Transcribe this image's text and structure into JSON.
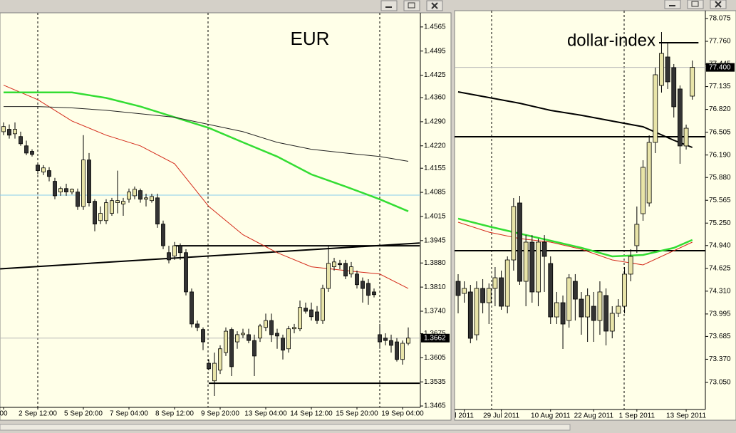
{
  "chart_data": [
    {
      "type": "candlestick",
      "title": "EUR",
      "categories": [
        "00",
        null,
        null,
        null,
        null,
        null,
        "2 Sep 12:00",
        null,
        null,
        null,
        null,
        null,
        null,
        null,
        "5 Sep 20:00",
        null,
        null,
        null,
        null,
        null,
        null,
        null,
        "7 Sep 04:00",
        null,
        null,
        null,
        null,
        null,
        null,
        null,
        "8 Sep 12:00",
        null,
        null,
        null,
        null,
        null,
        null,
        null,
        "9 Sep 20:00",
        null,
        null,
        null,
        null,
        null,
        null,
        null,
        "13 Sep 04:00",
        null,
        null,
        null,
        null,
        null,
        null,
        null,
        "14 Sep 12:00",
        null,
        null,
        null,
        null,
        null,
        null,
        null,
        "15 Sep 20:00",
        null,
        null,
        null,
        null,
        null,
        null,
        null,
        "19 Sep 04:00",
        null
      ],
      "ohlc": [
        [
          1.4261,
          1.4288,
          1.4251,
          1.4276
        ],
        [
          1.4268,
          1.4282,
          1.4241,
          1.4251
        ],
        [
          1.4255,
          1.4288,
          1.4241,
          1.4268
        ],
        [
          1.4247,
          1.4261,
          1.422,
          1.4226
        ],
        [
          1.422,
          1.4235,
          1.4193,
          1.4199
        ],
        [
          1.4204,
          1.421,
          1.4189,
          1.4195
        ],
        [
          1.4164,
          1.4172,
          1.4137,
          1.4148
        ],
        [
          1.4144,
          1.4164,
          1.4135,
          1.4156
        ],
        [
          1.4148,
          1.4158,
          1.4117,
          1.4131
        ],
        [
          1.4117,
          1.4127,
          1.4065,
          1.4075
        ],
        [
          1.4086,
          1.4102,
          1.4075,
          1.4096
        ],
        [
          1.4096,
          1.411,
          1.4075,
          1.4086
        ],
        [
          1.4086,
          1.4096,
          1.4079,
          1.4094
        ],
        [
          1.4086,
          1.4096,
          1.4034,
          1.4044
        ],
        [
          1.4044,
          1.4251,
          1.4034,
          1.4179
        ],
        [
          1.4179,
          1.4199,
          1.4044,
          1.4055
        ],
        [
          1.4059,
          1.4065,
          1.3972,
          1.3993
        ],
        [
          1.4003,
          1.4044,
          1.3993,
          1.4024
        ],
        [
          1.4003,
          1.4065,
          1.3993,
          1.4055
        ],
        [
          1.4024,
          1.4069,
          1.4017,
          1.4061
        ],
        [
          1.4055,
          1.4148,
          1.4024,
          1.4061
        ],
        [
          1.4051,
          1.4069,
          1.4017,
          1.4059
        ],
        [
          1.4065,
          1.4096,
          1.4055,
          1.4086
        ],
        [
          1.4075,
          1.4102,
          1.4065,
          1.4094
        ],
        [
          1.409,
          1.4096,
          1.4055,
          1.4065
        ],
        [
          1.4065,
          1.4081,
          1.4044,
          1.4069
        ],
        [
          1.4061,
          1.4081,
          1.4055,
          1.4073
        ],
        [
          1.4069,
          1.4081,
          1.3982,
          1.3993
        ],
        [
          1.3993,
          1.4003,
          1.392,
          1.393
        ],
        [
          1.391,
          1.393,
          1.3879,
          1.3889
        ],
        [
          1.39,
          1.3941,
          1.3889,
          1.393
        ],
        [
          1.393,
          1.3937,
          1.3889,
          1.391
        ],
        [
          1.391,
          1.392,
          1.3786,
          1.3796
        ],
        [
          1.3796,
          1.3806,
          1.3693,
          1.3703
        ],
        [
          1.3703,
          1.3713,
          1.3682,
          1.3693
        ],
        [
          1.3687,
          1.3693,
          1.3627,
          1.3651
        ],
        [
          1.3589,
          1.36,
          1.3569,
          1.3573
        ],
        [
          1.3538,
          1.362,
          1.3494,
          1.3589
        ],
        [
          1.3569,
          1.3641,
          1.3558,
          1.3631
        ],
        [
          1.362,
          1.3693,
          1.361,
          1.3682
        ],
        [
          1.3687,
          1.3693,
          1.3552,
          1.3579
        ],
        [
          1.3651,
          1.3682,
          1.3631,
          1.3672
        ],
        [
          1.3672,
          1.3689,
          1.3662,
          1.3676
        ],
        [
          1.3672,
          1.3689,
          1.3647,
          1.3655
        ],
        [
          1.3655,
          1.3672,
          1.3552,
          1.361
        ],
        [
          1.3662,
          1.3703,
          1.3651,
          1.3697
        ],
        [
          1.3693,
          1.3733,
          1.3682,
          1.3713
        ],
        [
          1.3713,
          1.3733,
          1.3651,
          1.3672
        ],
        [
          1.3676,
          1.3689,
          1.3631,
          1.3668
        ],
        [
          1.3662,
          1.3672,
          1.36,
          1.3627
        ],
        [
          1.3631,
          1.3697,
          1.362,
          1.3689
        ],
        [
          1.3689,
          1.3703,
          1.3676,
          1.3693
        ],
        [
          1.3689,
          1.3771,
          1.3682,
          1.3751
        ],
        [
          1.3749,
          1.3765,
          1.3733,
          1.374
        ],
        [
          1.3744,
          1.3765,
          1.3713,
          1.3724
        ],
        [
          1.3738,
          1.3755,
          1.3703,
          1.3713
        ],
        [
          1.3713,
          1.3817,
          1.3703,
          1.3806
        ],
        [
          1.3806,
          1.393,
          1.3796,
          1.3879
        ],
        [
          1.3869,
          1.3895,
          1.3858,
          1.3883
        ],
        [
          1.3879,
          1.3889,
          1.3862,
          1.3875
        ],
        [
          1.3879,
          1.3889,
          1.3833,
          1.3842
        ],
        [
          1.3848,
          1.3883,
          1.3838,
          1.3869
        ],
        [
          1.3848,
          1.3858,
          1.3806,
          1.3817
        ],
        [
          1.3827,
          1.3838,
          1.3765,
          1.3806
        ],
        [
          1.3821,
          1.3833,
          1.3759,
          1.3786
        ],
        [
          1.3796,
          1.3806,
          1.378,
          1.3788
        ],
        [
          1.3672,
          1.3703,
          1.3631,
          1.3651
        ],
        [
          1.3662,
          1.3676,
          1.3641,
          1.3655
        ],
        [
          1.3655,
          1.3672,
          1.362,
          1.3641
        ],
        [
          1.3651,
          1.3662,
          1.3594,
          1.36
        ],
        [
          1.36,
          1.3655,
          1.3585,
          1.3647
        ],
        [
          1.3647,
          1.3693,
          1.3641,
          1.3662
        ]
      ],
      "up_color": "#e8e4a8",
      "down_color": "#333333",
      "series": [
        {
          "color": "#d42a1a",
          "width": 1,
          "x": [
            0,
            6,
            12,
            18,
            24,
            30,
            36,
            42,
            48,
            54,
            60,
            66,
            71
          ],
          "values": [
            1.4396,
            1.4354,
            1.4292,
            1.4251,
            1.422,
            1.4168,
            1.4044,
            1.3962,
            1.391,
            1.3869,
            1.3858,
            1.3848,
            1.3806
          ]
        },
        {
          "color": "#33dd33",
          "width": 2.5,
          "x": [
            0,
            6,
            12,
            18,
            24,
            30,
            36,
            42,
            48,
            54,
            60,
            66,
            71
          ],
          "values": [
            1.4375,
            1.4375,
            1.4375,
            1.4359,
            1.4334,
            1.4303,
            1.4272,
            1.423,
            1.4189,
            1.4137,
            1.4102,
            1.4065,
            1.403
          ]
        },
        {
          "color": "#222222",
          "width": 1,
          "x": [
            0,
            6,
            12,
            18,
            24,
            30,
            36,
            42,
            48,
            54,
            60,
            66,
            71
          ],
          "values": [
            1.4334,
            1.4334,
            1.433,
            1.4323,
            1.4313,
            1.4303,
            1.4282,
            1.4261,
            1.423,
            1.421,
            1.4199,
            1.4189,
            1.4175
          ]
        }
      ],
      "levels": [
        {
          "value": 1.4077,
          "color": "#87ceeb",
          "width": 1
        },
        {
          "x": [
            36,
            73
          ],
          "values": [
            1.3531,
            1.3531
          ],
          "color": "#000000",
          "width": 2
        },
        {
          "x": [
            30,
            73
          ],
          "values": [
            1.393,
            1.393
          ],
          "color": "#000000",
          "width": 2
        },
        {
          "x": [
            -0.6,
            73
          ],
          "values": [
            1.3863,
            1.3938
          ],
          "color": "#000000",
          "width": 2
        }
      ],
      "last": 1.3662,
      "ylim": [
        1.3461,
        1.4606
      ],
      "yticks": [
        1.4565,
        1.4495,
        1.4425,
        {
          "value": 1.436,
          "label": "1.4360"
        },
        {
          "value": 1.429,
          "label": "1.4290"
        },
        {
          "value": 1.422,
          "label": "1.4220"
        },
        1.4155,
        1.4085,
        1.4015,
        1.3945,
        {
          "value": 1.388,
          "label": "1.3880"
        },
        {
          "value": 1.381,
          "label": "1.3810"
        },
        {
          "value": 1.374,
          "label": "1.3740"
        },
        1.3675,
        1.3605,
        1.3535,
        1.3465
      ]
    },
    {
      "type": "candlestick",
      "title": "dollar-index",
      "categories": [
        null,
        "l 2011",
        null,
        null,
        null,
        null,
        null,
        "29 Jul 2011",
        null,
        null,
        null,
        null,
        null,
        null,
        null,
        "10 Aug 2011",
        null,
        null,
        null,
        null,
        null,
        null,
        "22 Aug 2011",
        null,
        null,
        null,
        null,
        null,
        null,
        "1 Sep 2011",
        null,
        null,
        null,
        null,
        null,
        null,
        null,
        "13 Sep 2011",
        null
      ],
      "ohlc": [
        [
          74.446,
          74.545,
          74.004,
          74.25
        ],
        [
          74.279,
          74.446,
          74.151,
          74.348
        ],
        [
          74.299,
          74.397,
          73.591,
          73.659
        ],
        [
          73.708,
          74.446,
          73.63,
          74.348
        ],
        [
          74.348,
          74.476,
          74.004,
          74.151
        ],
        [
          74.151,
          74.417,
          73.856,
          74.348
        ],
        [
          74.348,
          74.643,
          74.102,
          74.495
        ],
        [
          74.495,
          74.594,
          74.053,
          74.102
        ],
        [
          74.102,
          74.79,
          74.004,
          74.741
        ],
        [
          74.741,
          75.597,
          74.594,
          75.479
        ],
        [
          75.528,
          75.626,
          74.397,
          74.446
        ],
        [
          74.446,
          75.085,
          74.102,
          74.987
        ],
        [
          74.987,
          75.085,
          74.151,
          74.299
        ],
        [
          74.299,
          75.036,
          74.102,
          74.987
        ],
        [
          74.987,
          75.085,
          74.299,
          74.79
        ],
        [
          74.692,
          74.79,
          73.856,
          73.954
        ],
        [
          73.954,
          74.299,
          73.856,
          74.151
        ],
        [
          74.151,
          74.25,
          73.512,
          73.856
        ],
        [
          73.905,
          74.545,
          73.807,
          74.495
        ],
        [
          74.446,
          74.545,
          73.905,
          74.2
        ],
        [
          74.2,
          74.299,
          73.708,
          73.954
        ],
        [
          73.954,
          74.348,
          73.61,
          74.25
        ],
        [
          74.102,
          74.299,
          73.61,
          73.905
        ],
        [
          73.905,
          74.446,
          73.708,
          74.299
        ],
        [
          74.25,
          74.348,
          73.561,
          73.758
        ],
        [
          73.758,
          74.102,
          73.659,
          74.004
        ],
        [
          74.004,
          74.2,
          73.954,
          74.102
        ],
        [
          74.102,
          74.643,
          74.004,
          74.545
        ],
        [
          74.545,
          74.889,
          74.446,
          74.79
        ],
        [
          74.938,
          75.479,
          74.84,
          75.233
        ],
        [
          75.38,
          76.118,
          75.282,
          76.02
        ],
        [
          75.528,
          76.462,
          75.479,
          76.364
        ],
        [
          76.364,
          77.397,
          76.216,
          77.298
        ],
        [
          77.151,
          77.888,
          77.052,
          77.593
        ],
        [
          77.544,
          77.741,
          77.102,
          77.2
        ],
        [
          77.397,
          77.446,
          76.708,
          76.856
        ],
        [
          77.102,
          77.151,
          76.069,
          76.315
        ],
        [
          76.315,
          76.61,
          76.266,
          76.56
        ],
        [
          77.003,
          77.495,
          76.954,
          77.4
        ]
      ],
      "up_color": "#e8e4a8",
      "down_color": "#333333",
      "series": [
        {
          "color": "#d42a1a",
          "width": 1,
          "x": [
            0,
            5,
            10,
            15,
            20,
            25,
            30,
            35,
            38
          ],
          "values": [
            75.262,
            75.125,
            75.036,
            74.987,
            74.889,
            74.741,
            74.672,
            74.869,
            74.987
          ]
        },
        {
          "color": "#33dd33",
          "width": 2.5,
          "x": [
            0,
            5,
            10,
            15,
            20,
            25,
            30,
            35,
            38
          ],
          "values": [
            75.312,
            75.203,
            75.105,
            75.007,
            74.908,
            74.79,
            74.81,
            74.908,
            75.017
          ]
        },
        {
          "color": "#000000",
          "width": 2,
          "x": [
            0,
            5,
            10,
            15,
            20,
            25,
            30,
            35,
            38
          ],
          "values": [
            77.062,
            76.983,
            76.905,
            76.806,
            76.738,
            76.659,
            76.58,
            76.393,
            76.295
          ]
        }
      ],
      "levels": [
        {
          "value": 76.443,
          "color": "#000000",
          "width": 2
        },
        {
          "value": 74.869,
          "color": "#000000",
          "width": 2
        },
        {
          "x": [
            32.6,
            39
          ],
          "values": [
            77.741,
            77.741
          ],
          "color": "#000000",
          "width": 2
        }
      ],
      "last": {
        "value": 77.4,
        "label": "77.400"
      },
      "ylim": [
        72.676,
        78.183
      ],
      "yticks": [
        78.075,
        {
          "value": 77.76,
          "label": "77.760"
        },
        77.445,
        77.135,
        {
          "value": 76.82,
          "label": "76.820"
        },
        76.505,
        {
          "value": 76.19,
          "label": "76.190"
        },
        {
          "value": 75.88,
          "label": "75.880"
        },
        75.565,
        {
          "value": 75.25,
          "label": "75.250"
        },
        {
          "value": 74.94,
          "label": "74.940"
        },
        74.625,
        {
          "value": 74.31,
          "label": "74.310"
        },
        73.995,
        73.685,
        {
          "value": 73.37,
          "label": "73.370"
        },
        {
          "value": 73.05,
          "label": "73.050"
        }
      ]
    }
  ]
}
